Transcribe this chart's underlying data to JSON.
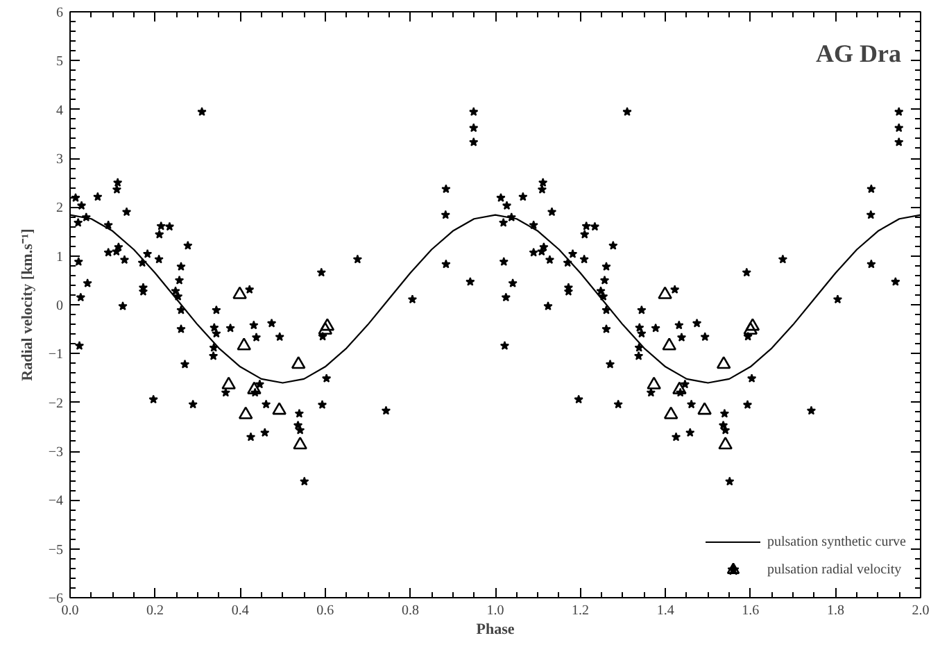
{
  "chart_data": {
    "type": "scatter",
    "title": "AG Dra",
    "xlabel": "Phase",
    "ylabel": "Radial velocity [km.s⁻¹]",
    "xlim": [
      0,
      2
    ],
    "ylim": [
      -6,
      6
    ],
    "xticks": [
      {
        "value": 0,
        "label": "0.0"
      },
      0.2,
      0.4,
      0.6,
      0.8,
      {
        "value": 1,
        "label": "1.0"
      },
      1.2,
      1.4,
      1.6,
      1.8,
      {
        "value": 2,
        "label": "2.0"
      }
    ],
    "yticks": [
      -6,
      -5,
      -4,
      -3,
      -2,
      -1,
      0,
      1,
      2,
      3,
      4,
      5,
      6
    ],
    "grid": false,
    "legend": "bottom right",
    "series": [
      {
        "type": "line",
        "name": "pulsation synthetic curve",
        "color": "#000000",
        "marker": "none",
        "line_style": "solid",
        "x": [
          0,
          0.05,
          0.1,
          0.15,
          0.2,
          0.25,
          0.3,
          0.35,
          0.4,
          0.45,
          0.5,
          0.55,
          0.6,
          0.65,
          0.7,
          0.75,
          0.8,
          0.85,
          0.9,
          0.95,
          1.0,
          1.05,
          1.1,
          1.15,
          1.2,
          1.25,
          1.3,
          1.35,
          1.4,
          1.45,
          1.5,
          1.55,
          1.6,
          1.65,
          1.7,
          1.75,
          1.8,
          1.85,
          1.9,
          1.95,
          2.0
        ],
        "values": [
          1.84,
          1.76,
          1.51,
          1.13,
          0.65,
          0.12,
          -0.41,
          -0.89,
          -1.27,
          -1.52,
          -1.6,
          -1.52,
          -1.27,
          -0.89,
          -0.41,
          0.12,
          0.65,
          1.13,
          1.51,
          1.76,
          1.84,
          1.76,
          1.51,
          1.13,
          0.65,
          0.12,
          -0.41,
          -0.89,
          -1.27,
          -1.52,
          -1.6,
          -1.52,
          -1.27,
          -0.89,
          -0.41,
          0.12,
          0.65,
          1.13,
          1.51,
          1.76,
          1.84
        ]
      },
      {
        "name": "pulsation radial velocity",
        "color": "#000000",
        "marker": "star",
        "x": [
          0.013,
          0.027,
          0.019,
          0.038,
          0.02,
          0.041,
          0.025,
          0.022,
          0.065,
          0.09,
          0.09,
          0.109,
          0.114,
          0.112,
          0.11,
          0.133,
          0.128,
          0.124,
          0.31,
          0.17,
          0.172,
          0.172,
          0.182,
          0.21,
          0.214,
          0.234,
          0.209,
          0.196,
          0.277,
          0.261,
          0.257,
          0.248,
          0.254,
          0.261,
          0.261,
          0.27,
          0.289,
          0.344,
          0.339,
          0.344,
          0.338,
          0.337,
          0.377,
          0.366,
          0.422,
          0.432,
          0.438,
          0.474,
          0.493,
          0.435,
          0.446,
          0.461,
          0.425,
          0.458,
          0.594,
          0.591,
          0.603,
          0.593,
          0.539,
          0.536,
          0.541,
          0.551,
          0.676,
          0.743,
          0.805,
          0.884,
          0.883,
          0.884,
          0.941,
          0.949,
          0.949,
          0.949,
          1.013,
          1.027,
          1.019,
          1.038,
          1.02,
          1.041,
          1.025,
          1.022,
          1.065,
          1.09,
          1.09,
          1.109,
          1.114,
          1.112,
          1.11,
          1.133,
          1.128,
          1.124,
          1.31,
          1.17,
          1.172,
          1.172,
          1.182,
          1.21,
          1.214,
          1.234,
          1.209,
          1.196,
          1.277,
          1.261,
          1.257,
          1.248,
          1.254,
          1.261,
          1.261,
          1.27,
          1.289,
          1.344,
          1.339,
          1.344,
          1.338,
          1.337,
          1.377,
          1.366,
          1.422,
          1.432,
          1.438,
          1.474,
          1.493,
          1.435,
          1.446,
          1.461,
          1.425,
          1.458,
          1.594,
          1.591,
          1.603,
          1.593,
          1.539,
          1.536,
          1.541,
          1.551,
          1.676,
          1.743,
          1.805,
          1.884,
          1.883,
          1.884,
          1.941,
          1.949,
          1.949,
          1.949
        ],
        "values": [
          2.19,
          2.03,
          1.68,
          1.79,
          0.88,
          0.44,
          0.15,
          -0.84,
          2.21,
          1.63,
          1.07,
          1.09,
          1.18,
          2.5,
          2.36,
          1.9,
          0.92,
          -0.03,
          3.95,
          0.86,
          0.35,
          0.27,
          1.04,
          1.44,
          1.61,
          1.6,
          0.93,
          -1.94,
          1.21,
          0.78,
          0.5,
          0.28,
          0.17,
          -0.11,
          -0.5,
          -1.22,
          -2.04,
          -0.11,
          -0.47,
          -0.59,
          -0.88,
          -1.05,
          -0.48,
          -1.8,
          0.31,
          -0.42,
          -0.67,
          -0.38,
          -0.66,
          -1.8,
          -1.63,
          -2.04,
          -2.71,
          -2.62,
          -0.65,
          0.66,
          -1.51,
          -2.05,
          -2.23,
          -2.47,
          -2.57,
          -3.62,
          0.93,
          -2.17,
          0.11,
          2.37,
          1.84,
          0.83,
          0.47,
          3.95,
          3.62,
          3.33,
          2.19,
          2.03,
          1.68,
          1.79,
          0.88,
          0.44,
          0.15,
          -0.84,
          2.21,
          1.63,
          1.07,
          1.09,
          1.18,
          2.5,
          2.36,
          1.9,
          0.92,
          -0.03,
          3.95,
          0.86,
          0.35,
          0.27,
          1.04,
          1.44,
          1.61,
          1.6,
          0.93,
          -1.94,
          1.21,
          0.78,
          0.5,
          0.28,
          0.17,
          -0.11,
          -0.5,
          -1.22,
          -2.04,
          -0.11,
          -0.47,
          -0.59,
          -0.88,
          -1.05,
          -0.48,
          -1.8,
          0.31,
          -0.42,
          -0.67,
          -0.38,
          -0.66,
          -1.8,
          -1.63,
          -2.04,
          -2.71,
          -2.62,
          -0.65,
          0.66,
          -1.51,
          -2.05,
          -2.23,
          -2.47,
          -2.57,
          -3.62,
          0.93,
          -2.17,
          0.11,
          2.37,
          1.84,
          0.83,
          0.47,
          3.95,
          3.62,
          3.33
        ]
      },
      {
        "color": "#000000",
        "marker": "triangle",
        "x": [
          0.399,
          0.409,
          0.373,
          0.433,
          0.413,
          0.492,
          0.537,
          0.541,
          0.605,
          0.6,
          1.399,
          1.409,
          1.373,
          1.433,
          1.413,
          1.492,
          1.537,
          1.541,
          1.605,
          1.6
        ],
        "values": [
          0.21,
          -0.84,
          -1.64,
          -1.74,
          -2.25,
          -2.16,
          -1.22,
          -2.87,
          -0.44,
          -0.52,
          0.21,
          -0.84,
          -1.64,
          -1.74,
          -2.25,
          -2.16,
          -1.22,
          -2.87,
          -0.44,
          -0.52
        ]
      }
    ]
  }
}
